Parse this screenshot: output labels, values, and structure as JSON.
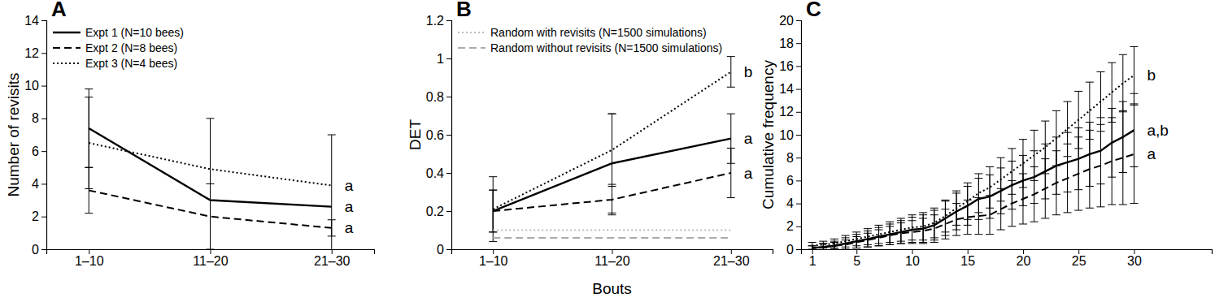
{
  "chart_data": [
    {
      "type": "line",
      "title": "A",
      "y_label": "Number of revisits",
      "categories": [
        "1–10",
        "11–20",
        "21–30"
      ],
      "ylim": [
        0,
        14
      ],
      "yticks": [
        0,
        2,
        4,
        6,
        8,
        10,
        12,
        14
      ],
      "legend": "upper left",
      "series": [
        {
          "name": "Expt 1 (N=10 bees)",
          "color": "#000000",
          "line_style": "solid",
          "values": [
            7.4,
            3.0,
            2.6
          ],
          "errors": [
            2.4,
            5.0,
            4.4
          ],
          "annotation": "a"
        },
        {
          "name": "Expt 2 (N=8 bees)",
          "color": "#000000",
          "line_style": "dashed",
          "values": [
            3.6,
            2.0,
            1.3
          ],
          "errors": [
            1.4,
            2.0,
            0.5
          ],
          "annotation": "a"
        },
        {
          "name": "Expt 3 (N=4 bees)",
          "color": "#000000",
          "line_style": "dotted",
          "values": [
            6.5,
            4.9,
            3.9
          ],
          "errors": [
            2.8,
            null,
            null
          ],
          "annotation": "a"
        }
      ]
    },
    {
      "type": "line",
      "title": "B",
      "y_label": "DET",
      "x_label": "Bouts",
      "categories": [
        "1–10",
        "11–20",
        "21–30"
      ],
      "ylim": [
        0,
        1.2
      ],
      "yticks": [
        0,
        0.2,
        0.4,
        0.6,
        0.8,
        1,
        1.2
      ],
      "legend": "upper left",
      "series": [
        {
          "color": "#000000",
          "line_style": "solid",
          "values": [
            0.2,
            0.45,
            0.58
          ],
          "errors": [
            0.11,
            0.26,
            0.13
          ],
          "annotation": "a"
        },
        {
          "color": "#000000",
          "line_style": "dashed",
          "values": [
            0.2,
            0.26,
            0.4
          ],
          "errors": [
            0.11,
            0.08,
            0.13
          ],
          "annotation": "a"
        },
        {
          "color": "#000000",
          "line_style": "dotted",
          "values": [
            0.21,
            0.52,
            0.93
          ],
          "errors": [
            0.17,
            0.19,
            0.08
          ],
          "annotation": "b"
        },
        {
          "name": "Random with revisits (N=1500 simulations)",
          "color": "#bbbbbb",
          "line_style": "dotted",
          "values": [
            0.1,
            0.1,
            0.1
          ]
        },
        {
          "name": "Random without revisits (N=1500 simulations)",
          "color": "#aaaaaa",
          "line_style": "dashed",
          "values": [
            0.06,
            0.06,
            0.06
          ]
        }
      ]
    },
    {
      "type": "line",
      "title": "C",
      "y_label": "Cumulative frequency",
      "x": [
        1,
        2,
        3,
        4,
        5,
        6,
        7,
        8,
        9,
        10,
        11,
        12,
        13,
        14,
        15,
        16,
        17,
        18,
        19,
        20,
        21,
        22,
        23,
        24,
        25,
        26,
        27,
        28,
        29,
        30
      ],
      "xlim": [
        0,
        37
      ],
      "xticks": [
        1,
        5,
        10,
        15,
        20,
        25,
        30
      ],
      "ylim": [
        0,
        20
      ],
      "yticks": [
        0,
        2,
        4,
        6,
        8,
        10,
        12,
        14,
        16,
        18,
        20
      ],
      "series": [
        {
          "color": "#000000",
          "line_style": "solid",
          "annotation": "a,b",
          "values": [
            0.1,
            0.2,
            0.3,
            0.5,
            0.7,
            0.9,
            1.1,
            1.3,
            1.5,
            1.7,
            1.8,
            2.1,
            2.7,
            3.3,
            3.8,
            4.4,
            4.6,
            5.1,
            5.6,
            6.0,
            6.3,
            6.8,
            7.3,
            7.6,
            7.9,
            8.3,
            8.6,
            9.3,
            9.8,
            10.4
          ],
          "errors": [
            0.2,
            0.3,
            0.4,
            0.5,
            0.6,
            0.7,
            0.8,
            0.9,
            1.0,
            1.1,
            1.2,
            1.3,
            1.5,
            1.6,
            1.7,
            1.8,
            1.9,
            2.0,
            2.1,
            2.2,
            2.3,
            2.4,
            2.5,
            2.6,
            2.7,
            2.8,
            2.9,
            3.0,
            3.1,
            3.2
          ]
        },
        {
          "color": "#000000",
          "line_style": "dashed",
          "annotation": "a",
          "values": [
            0.1,
            0.2,
            0.3,
            0.4,
            0.6,
            0.8,
            1.0,
            1.2,
            1.4,
            1.5,
            1.6,
            1.8,
            2.2,
            2.6,
            2.8,
            2.9,
            3.0,
            3.5,
            4.0,
            4.4,
            4.8,
            5.3,
            5.8,
            6.2,
            6.6,
            7.0,
            7.3,
            7.7,
            8.0,
            8.3
          ],
          "errors": [
            0.2,
            0.3,
            0.3,
            0.4,
            0.5,
            0.6,
            0.7,
            0.8,
            0.9,
            1.0,
            1.1,
            1.2,
            1.3,
            1.4,
            1.5,
            1.6,
            1.7,
            1.8,
            2.0,
            2.2,
            2.4,
            2.6,
            2.8,
            3.0,
            3.2,
            3.4,
            3.6,
            3.8,
            4.1,
            4.3
          ]
        },
        {
          "color": "#000000",
          "line_style": "dotted",
          "annotation": "b",
          "values": [
            0.3,
            0.4,
            0.5,
            0.7,
            0.9,
            1.1,
            1.3,
            1.5,
            1.7,
            1.9,
            2.0,
            2.3,
            2.9,
            3.6,
            4.2,
            4.9,
            5.4,
            6.1,
            6.8,
            7.5,
            8.2,
            8.9,
            9.7,
            10.5,
            11.3,
            12.1,
            12.9,
            13.7,
            14.5,
            15.2
          ],
          "errors": [
            0.3,
            0.3,
            0.4,
            0.5,
            0.6,
            0.7,
            0.8,
            0.9,
            1.0,
            1.1,
            1.2,
            1.3,
            1.4,
            1.5,
            1.6,
            1.7,
            1.8,
            1.9,
            2.0,
            2.1,
            2.2,
            2.3,
            2.4,
            2.4,
            2.5,
            2.5,
            2.6,
            2.6,
            2.5,
            2.5
          ]
        }
      ]
    }
  ]
}
